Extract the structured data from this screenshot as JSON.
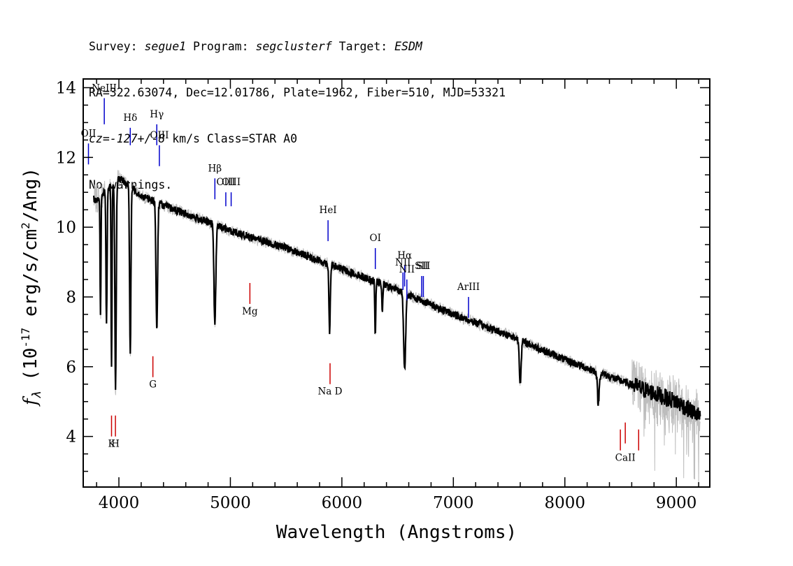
{
  "header": {
    "survey_label": "Survey: ",
    "survey": "segue1",
    "program_label": " Program: ",
    "program": "segclusterf",
    "target_label": " Target: ",
    "target": "ESDM",
    "line2": "RA=322.63074, Dec=12.01786, Plate=1962, Fiber=510, MJD=53321",
    "cz_label": "cz=",
    "cz_value": "-127+/-8",
    "line3_rest": " km/s Class=STAR A0",
    "line4": "No warnings."
  },
  "colors": {
    "smoothed": "#000000",
    "raw": "#bdbdbd",
    "emission_lines": "#0000cc",
    "absorption_lines": "#cc0000"
  },
  "chart_data": {
    "type": "line",
    "xlabel": "Wavelength (Angstroms)",
    "ylabel": "f_λ (10^-17 erg/s/cm^2/Ang)",
    "xlim": [
      3680,
      9300
    ],
    "ylim": [
      2.55,
      14.25
    ],
    "x_ticks": [
      4000,
      5000,
      6000,
      7000,
      8000,
      9000
    ],
    "y_ticks": [
      4,
      6,
      8,
      10,
      12,
      14
    ],
    "x_tick_labels": [
      "4000",
      "5000",
      "6000",
      "7000",
      "8000",
      "9000"
    ],
    "y_tick_labels": [
      "4",
      "6",
      "8",
      "10",
      "12",
      "14"
    ],
    "continuum": {
      "x": [
        3800,
        4000,
        4100,
        4200,
        4500,
        5000,
        5500,
        6000,
        6500,
        7000,
        7500,
        8000,
        8500,
        9000,
        9200
      ],
      "y": [
        10.8,
        11.4,
        11.2,
        10.9,
        10.5,
        9.9,
        9.4,
        8.8,
        8.2,
        7.5,
        6.9,
        6.2,
        5.6,
        5.0,
        4.6
      ]
    },
    "absorption_features": [
      {
        "x": 3835,
        "depth": 3.5,
        "width": 4
      },
      {
        "x": 3889,
        "depth": 3.9,
        "width": 5
      },
      {
        "x": 3934,
        "depth": 5.3,
        "width": 4
      },
      {
        "x": 3970,
        "depth": 6.0,
        "width": 6
      },
      {
        "x": 4102,
        "depth": 4.8,
        "width": 6
      },
      {
        "x": 4340,
        "depth": 3.7,
        "width": 7
      },
      {
        "x": 4861,
        "depth": 2.9,
        "width": 8
      },
      {
        "x": 5890,
        "depth": 1.9,
        "width": 6
      },
      {
        "x": 6300,
        "depth": 1.6,
        "width": 4
      },
      {
        "x": 6363,
        "depth": 0.8,
        "width": 4
      },
      {
        "x": 6563,
        "depth": 2.2,
        "width": 9
      },
      {
        "x": 7600,
        "depth": 1.2,
        "width": 8
      },
      {
        "x": 8300,
        "depth": 0.9,
        "width": 8
      }
    ],
    "emission_lines": [
      {
        "label": "NeIII",
        "x": 3869,
        "y_bot": 12.95,
        "y_top": 13.7,
        "label_y": 13.9
      },
      {
        "label": "OII",
        "x": 3727,
        "y_bot": 11.8,
        "y_top": 12.4,
        "label_y": 12.6
      },
      {
        "label": "Hδ",
        "x": 4102,
        "y_bot": 12.35,
        "y_top": 12.85,
        "label_y": 13.05
      },
      {
        "label": "Hγ",
        "x": 4340,
        "y_bot": 12.35,
        "y_top": 12.95,
        "label_y": 13.15
      },
      {
        "label": "OIII",
        "x": 4363,
        "y_bot": 11.75,
        "y_top": 12.35,
        "label_y": 12.55
      },
      {
        "label": "Hβ",
        "x": 4861,
        "y_bot": 10.8,
        "y_top": 11.4,
        "label_y": 11.6
      },
      {
        "label": "OIII",
        "x": 4959,
        "y_bot": 10.6,
        "y_top": 11.0,
        "label_y": 11.2
      },
      {
        "label": "OIII",
        "x": 5007,
        "y_bot": 10.6,
        "y_top": 11.0,
        "label_y": 11.2
      },
      {
        "label": "HeI",
        "x": 5876,
        "y_bot": 9.6,
        "y_top": 10.2,
        "label_y": 10.4
      },
      {
        "label": "OI",
        "x": 6300,
        "y_bot": 8.8,
        "y_top": 9.4,
        "label_y": 9.6
      },
      {
        "label": "NII",
        "x": 6548,
        "y_bot": 8.2,
        "y_top": 8.7,
        "label_y": 8.9
      },
      {
        "label": "Hα",
        "x": 6563,
        "y_bot": 8.3,
        "y_top": 8.9,
        "label_y": 9.1
      },
      {
        "label": "NII",
        "x": 6583,
        "y_bot": 7.9,
        "y_top": 8.5,
        "label_y": 8.7
      },
      {
        "label": "SII",
        "x": 6716,
        "y_bot": 8.0,
        "y_top": 8.6,
        "label_y": 8.8
      },
      {
        "label": "SII",
        "x": 6731,
        "y_bot": 8.0,
        "y_top": 8.6,
        "label_y": 8.8
      },
      {
        "label": "ArIII",
        "x": 7136,
        "y_bot": 7.4,
        "y_top": 8.0,
        "label_y": 8.2
      }
    ],
    "absorption_lines": [
      {
        "label": "K",
        "x": 3934,
        "y_top": 4.6,
        "y_bot": 4.0,
        "label_y": 3.7
      },
      {
        "label": "H",
        "x": 3969,
        "y_top": 4.6,
        "y_bot": 4.0,
        "label_y": 3.7
      },
      {
        "label": "G",
        "x": 4305,
        "y_top": 6.3,
        "y_bot": 5.7,
        "label_y": 5.4
      },
      {
        "label": "Mg",
        "x": 5175,
        "y_top": 8.4,
        "y_bot": 7.8,
        "label_y": 7.5
      },
      {
        "label": "Na D",
        "x": 5894,
        "y_top": 6.1,
        "y_bot": 5.5,
        "label_y": 5.2
      },
      {
        "label": "",
        "x": 8498,
        "y_top": 4.2,
        "y_bot": 3.6,
        "label_y": 3.3
      },
      {
        "label": "CaII",
        "x": 8542,
        "y_top": 4.4,
        "y_bot": 3.8,
        "label_y": 3.3
      },
      {
        "label": "",
        "x": 8662,
        "y_top": 4.2,
        "y_bot": 3.6,
        "label_y": 3.3
      }
    ]
  }
}
